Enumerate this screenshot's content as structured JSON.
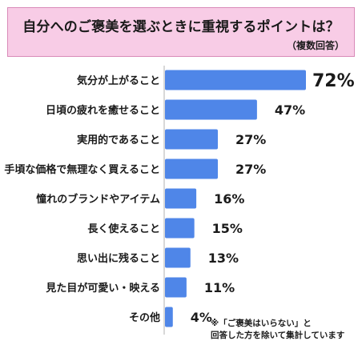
{
  "chart_data": {
    "type": "bar",
    "orientation": "horizontal",
    "title": "自分へのご褒美を選ぶときに重視するポイントは？",
    "subtitle": "（複数回答）",
    "value_suffix": "%",
    "categories": [
      "気分が上がること",
      "日頃の疲れを癒せること",
      "実用的であること",
      "手頃な価格で無理なく買えること",
      "憧れのブランドやアイテム",
      "長く使えること",
      "思い出に残ること",
      "見た目が可愛い・映える",
      "その他"
    ],
    "values": [
      72,
      47,
      27,
      27,
      16,
      15,
      13,
      11,
      4
    ],
    "xlim": [
      0,
      72
    ],
    "bar_color": "#4f86e8",
    "grid": false,
    "footnote": [
      "※「ご褒美はいらない」と",
      "回答した方を除いて集計しています"
    ]
  }
}
